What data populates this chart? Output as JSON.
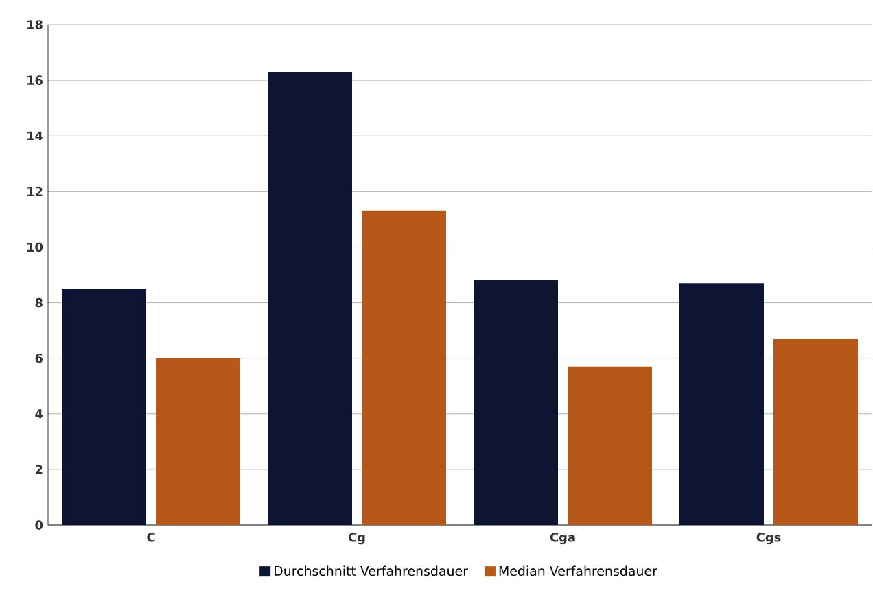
{
  "chart_data": {
    "type": "bar",
    "categories": [
      "C",
      "Cg",
      "Cga",
      "Cgs"
    ],
    "series": [
      {
        "name": "Durchschnitt Verfahrensdauer",
        "color": "#0d1533",
        "values": [
          8.5,
          16.3,
          8.8,
          8.7
        ]
      },
      {
        "name": "Median Verfahrensdauer",
        "color": "#b5581a",
        "values": [
          6.0,
          11.3,
          5.7,
          6.7
        ]
      }
    ],
    "ylim": [
      0,
      18
    ],
    "yticks": [
      0,
      2,
      4,
      6,
      8,
      10,
      12,
      14,
      16,
      18
    ],
    "grid": "y",
    "legend": "bottom"
  }
}
